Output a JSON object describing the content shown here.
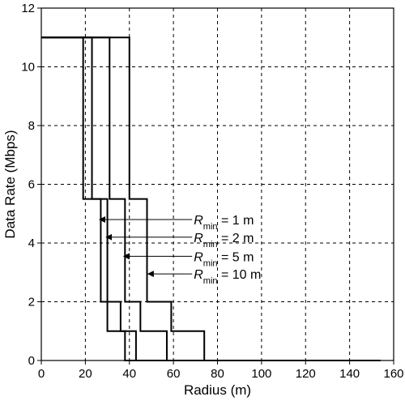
{
  "chart_data": {
    "type": "line",
    "title": "",
    "xlabel": "Radius (m)",
    "ylabel": "Data Rate (Mbps)",
    "xlim": [
      0,
      160
    ],
    "ylim": [
      0,
      12
    ],
    "xticks": [
      0,
      20,
      40,
      60,
      80,
      100,
      120,
      140,
      160
    ],
    "yticks": [
      0,
      2,
      4,
      6,
      8,
      10,
      12
    ],
    "xtick_labels": [
      "0",
      "20",
      "40",
      "60",
      "80",
      100,
      "120",
      "140",
      "160"
    ],
    "ytick_labels": [
      "0",
      "2",
      "4",
      "6",
      "8",
      "10",
      "12"
    ],
    "grid": true,
    "grid_style": "dashed",
    "line_color": "#000000",
    "series": [
      {
        "name": "Rmin = 1 m",
        "x": [
          0,
          19,
          19,
          27,
          27,
          30,
          30,
          35,
          35,
          38,
          38,
          154
        ],
        "y": [
          11,
          11,
          5.5,
          5.5,
          2,
          2,
          1,
          1,
          1,
          1,
          0,
          0
        ]
      },
      {
        "name": "Rmin = 2 m",
        "x": [
          0,
          23,
          23,
          30,
          30,
          36,
          36,
          40,
          40,
          43,
          43,
          154
        ],
        "y": [
          11,
          11,
          5.5,
          5.5,
          2,
          2,
          1,
          1,
          1,
          1,
          0,
          0
        ]
      },
      {
        "name": "Rmin = 5 m",
        "x": [
          0,
          31,
          31,
          38,
          38,
          45,
          45,
          51,
          51,
          57,
          57,
          154
        ],
        "y": [
          11,
          11,
          5.5,
          5.5,
          2,
          2,
          1,
          1,
          1,
          1,
          0,
          0
        ]
      },
      {
        "name": "Rmin = 10 m",
        "x": [
          0,
          40,
          40,
          48,
          48,
          59,
          59,
          66,
          66,
          74,
          74,
          154
        ],
        "y": [
          11,
          11,
          5.5,
          5.5,
          2,
          2,
          1,
          1,
          1,
          1,
          0,
          0
        ]
      }
    ],
    "annotations": [
      {
        "prefix": "R",
        "subscript": "min",
        "suffix": " = 1 m",
        "arrow_to": [
          26.5,
          4.8
        ],
        "arrow_from": [
          68.5,
          4.8
        ],
        "text_x": 68.5,
        "text_y": 4.8
      },
      {
        "prefix": "R",
        "subscript": "min",
        "suffix": " = 2 m",
        "arrow_to": [
          29.5,
          4.2
        ],
        "arrow_from": [
          68.5,
          4.2
        ],
        "text_x": 68.5,
        "text_y": 4.2
      },
      {
        "prefix": "R",
        "subscript": "min",
        "suffix": " = 5 m",
        "arrow_to": [
          37.5,
          3.55
        ],
        "arrow_from": [
          68.5,
          3.55
        ],
        "text_x": 68.5,
        "text_y": 3.55
      },
      {
        "prefix": "R",
        "subscript": "min",
        "suffix": " = 10 m",
        "arrow_to": [
          48.5,
          2.95
        ],
        "arrow_from": [
          68.5,
          2.95
        ],
        "text_x": 68.5,
        "text_y": 2.95
      }
    ]
  }
}
